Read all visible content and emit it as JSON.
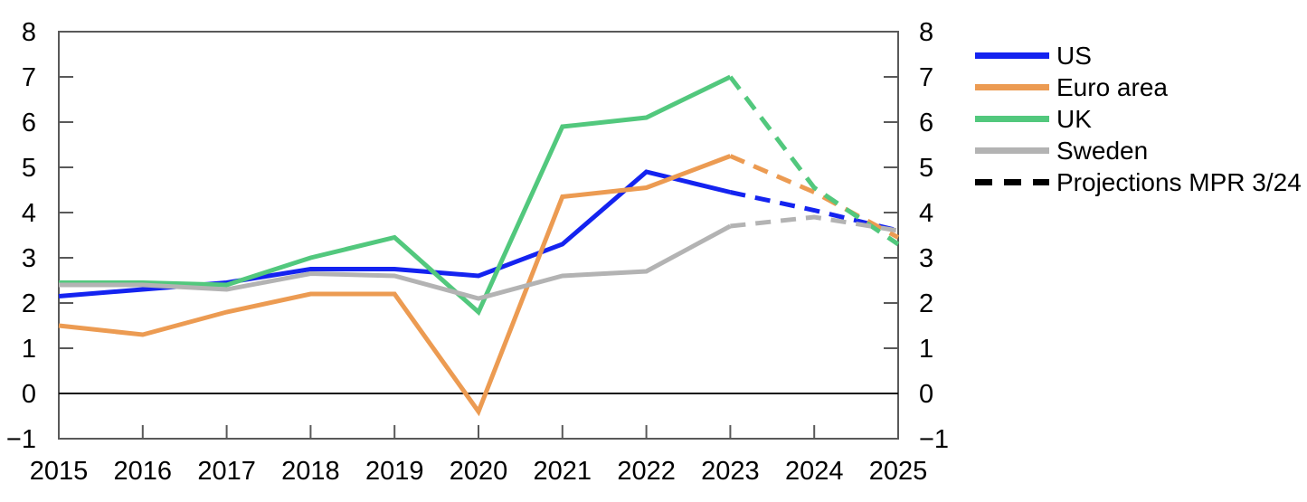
{
  "figure": {
    "background": "#ffffff",
    "axis_color": "#595959",
    "zero_line_color": "#111111",
    "tick_label_color": "#000000"
  },
  "legend": {
    "items": [
      {
        "label": "US",
        "color": "#1423F0",
        "style": "solid"
      },
      {
        "label": "Euro area",
        "color": "#EC9B52",
        "style": "solid"
      },
      {
        "label": "UK",
        "color": "#52C87D",
        "style": "solid"
      },
      {
        "label": "Sweden",
        "color": "#B3B3B3",
        "style": "solid"
      },
      {
        "label": "Projections MPR 3/24",
        "color": "#000000",
        "style": "dashed"
      }
    ]
  },
  "chart_data": {
    "type": "line",
    "x": [
      2015,
      2016,
      2017,
      2018,
      2019,
      2020,
      2021,
      2022,
      2023,
      2024,
      2025
    ],
    "x_tick_labels": [
      "2015",
      "2016",
      "2017",
      "2018",
      "2019",
      "2020",
      "2021",
      "2022",
      "2023",
      "2024",
      "2025"
    ],
    "xlim": [
      2015,
      2025
    ],
    "ylim": [
      -1,
      8
    ],
    "yticks": [
      8,
      7,
      6,
      5,
      4,
      3,
      2,
      1,
      0,
      -1
    ],
    "axis_sides": "both-left-and-right",
    "grid": "off",
    "zero_line": 0,
    "legend_position": "right-outside",
    "projection_start_year": 2023,
    "projection_style": "dashed",
    "projection_label": "Projections MPR 3/24",
    "series": [
      {
        "name": "US",
        "color": "#1423F0",
        "values": [
          2.15,
          2.3,
          2.45,
          2.75,
          2.75,
          2.6,
          3.3,
          4.9,
          4.45,
          4.05,
          3.6
        ]
      },
      {
        "name": "Euro area",
        "color": "#EC9B52",
        "values": [
          1.5,
          1.3,
          1.8,
          2.2,
          2.2,
          -0.4,
          4.35,
          4.55,
          5.25,
          4.45,
          3.45
        ]
      },
      {
        "name": "UK",
        "color": "#52C87D",
        "values": [
          2.45,
          2.45,
          2.4,
          3.0,
          3.45,
          1.8,
          5.9,
          6.1,
          7.0,
          4.55,
          3.3
        ]
      },
      {
        "name": "Sweden",
        "color": "#B3B3B3",
        "values": [
          2.4,
          2.4,
          2.3,
          2.65,
          2.6,
          2.1,
          2.6,
          2.7,
          3.7,
          3.9,
          3.6
        ]
      }
    ]
  }
}
